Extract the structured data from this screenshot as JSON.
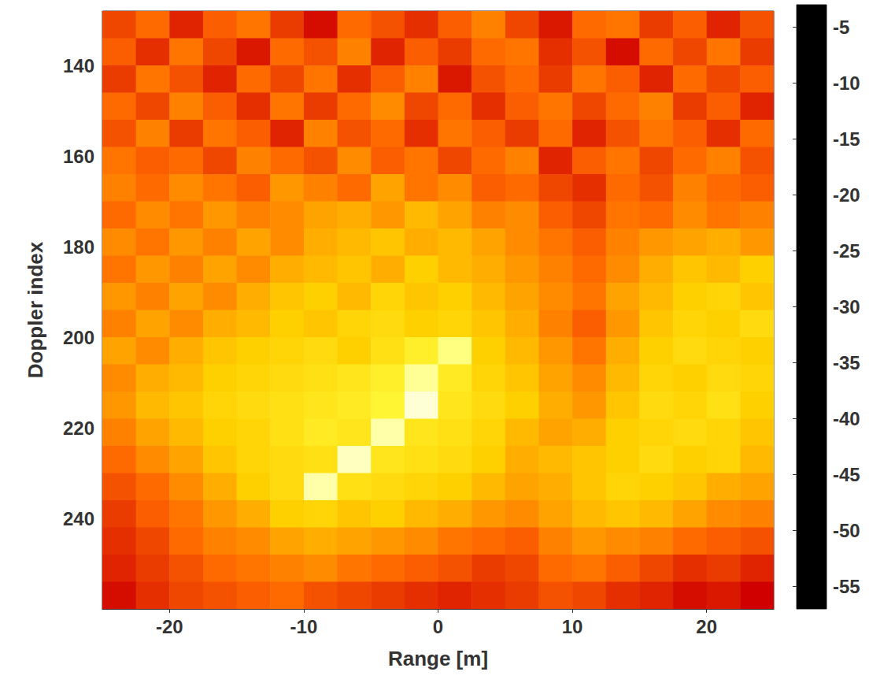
{
  "chart_data": {
    "type": "heatmap",
    "x_label": "Range [m]",
    "y_label": "Doppler index",
    "xlim": [
      -25,
      25
    ],
    "ylim": [
      128,
      260
    ],
    "xticks": [
      -20,
      -10,
      0,
      10,
      20
    ],
    "yticks": [
      140,
      160,
      180,
      200,
      220,
      240
    ],
    "x": [
      -23.75,
      -21.25,
      -18.75,
      -16.25,
      -13.75,
      -11.25,
      -8.75,
      -6.25,
      -3.75,
      -1.25,
      1.25,
      3.75,
      6.25,
      8.75,
      11.25,
      13.75,
      16.25,
      18.75,
      21.25,
      23.75
    ],
    "y": [
      131,
      137,
      143,
      149,
      155,
      161,
      167,
      173,
      179,
      185,
      191,
      197,
      203,
      209,
      215,
      221,
      227,
      233,
      239,
      245,
      251,
      257
    ],
    "values": [
      [
        -33,
        -30,
        -36,
        -31,
        -29,
        -34,
        -38,
        -30,
        -32,
        -35,
        -31,
        -28,
        -33,
        -37,
        -30,
        -29,
        -34,
        -31,
        -36,
        -32
      ],
      [
        -31,
        -35,
        -29,
        -33,
        -37,
        -30,
        -32,
        -28,
        -36,
        -31,
        -34,
        -30,
        -29,
        -35,
        -32,
        -38,
        -30,
        -33,
        -29,
        -34
      ],
      [
        -34,
        -29,
        -32,
        -36,
        -30,
        -33,
        -29,
        -35,
        -31,
        -28,
        -37,
        -32,
        -30,
        -34,
        -29,
        -31,
        -36,
        -30,
        -33,
        -31
      ],
      [
        -30,
        -33,
        -28,
        -31,
        -35,
        -29,
        -34,
        -30,
        -27,
        -33,
        -30,
        -35,
        -31,
        -29,
        -33,
        -30,
        -28,
        -34,
        -31,
        -36
      ],
      [
        -32,
        -28,
        -34,
        -29,
        -31,
        -36,
        -28,
        -32,
        -30,
        -35,
        -29,
        -31,
        -34,
        -30,
        -36,
        -32,
        -29,
        -31,
        -35,
        -30
      ],
      [
        -29,
        -31,
        -30,
        -33,
        -28,
        -30,
        -32,
        -27,
        -31,
        -29,
        -33,
        -30,
        -28,
        -36,
        -31,
        -29,
        -33,
        -30,
        -28,
        -32
      ],
      [
        -28,
        -30,
        -27,
        -29,
        -31,
        -26,
        -28,
        -30,
        -25,
        -29,
        -27,
        -31,
        -30,
        -33,
        -35,
        -30,
        -32,
        -28,
        -30,
        -31
      ],
      [
        -30,
        -27,
        -29,
        -26,
        -28,
        -27,
        -25,
        -24,
        -26,
        -23,
        -25,
        -28,
        -27,
        -31,
        -33,
        -29,
        -30,
        -27,
        -29,
        -28
      ],
      [
        -27,
        -29,
        -26,
        -28,
        -25,
        -27,
        -24,
        -23,
        -22,
        -24,
        -23,
        -25,
        -27,
        -29,
        -31,
        -28,
        -26,
        -25,
        -24,
        -26
      ],
      [
        -29,
        -26,
        -28,
        -25,
        -27,
        -24,
        -23,
        -22,
        -24,
        -21,
        -23,
        -24,
        -26,
        -28,
        -30,
        -27,
        -24,
        -22,
        -23,
        -21
      ],
      [
        -26,
        -28,
        -25,
        -27,
        -24,
        -22,
        -21,
        -23,
        -20,
        -22,
        -21,
        -23,
        -25,
        -27,
        -29,
        -25,
        -23,
        -21,
        -20,
        -22
      ],
      [
        -28,
        -25,
        -27,
        -24,
        -23,
        -21,
        -22,
        -20,
        -19,
        -21,
        -20,
        -22,
        -24,
        -28,
        -31,
        -26,
        -22,
        -20,
        -21,
        -19
      ],
      [
        -25,
        -27,
        -24,
        -22,
        -21,
        -20,
        -19,
        -21,
        -18,
        -15,
        -9,
        -21,
        -23,
        -26,
        -29,
        -24,
        -21,
        -19,
        -20,
        -21
      ],
      [
        -27,
        -24,
        -23,
        -21,
        -20,
        -19,
        -18,
        -17,
        -15,
        -8,
        -16,
        -20,
        -22,
        -25,
        -27,
        -23,
        -20,
        -21,
        -19,
        -20
      ],
      [
        -26,
        -23,
        -22,
        -20,
        -19,
        -18,
        -17,
        -16,
        -14,
        -5,
        -17,
        -19,
        -21,
        -24,
        -26,
        -22,
        -19,
        -20,
        -18,
        -21
      ],
      [
        -28,
        -25,
        -23,
        -21,
        -20,
        -18,
        -16,
        -17,
        -7,
        -17,
        -18,
        -20,
        -23,
        -25,
        -24,
        -21,
        -20,
        -19,
        -20,
        -22
      ],
      [
        -30,
        -27,
        -25,
        -22,
        -20,
        -19,
        -18,
        -6,
        -17,
        -18,
        -19,
        -21,
        -24,
        -23,
        -22,
        -21,
        -19,
        -21,
        -20,
        -23
      ],
      [
        -32,
        -30,
        -27,
        -24,
        -21,
        -19,
        -7,
        -18,
        -19,
        -20,
        -21,
        -23,
        -25,
        -24,
        -22,
        -20,
        -21,
        -22,
        -24,
        -25
      ],
      [
        -34,
        -31,
        -29,
        -26,
        -24,
        -21,
        -20,
        -22,
        -21,
        -23,
        -24,
        -26,
        -27,
        -25,
        -23,
        -22,
        -23,
        -25,
        -27,
        -28
      ],
      [
        -35,
        -33,
        -30,
        -28,
        -27,
        -25,
        -24,
        -25,
        -26,
        -27,
        -29,
        -30,
        -31,
        -28,
        -26,
        -27,
        -28,
        -30,
        -31,
        -32
      ],
      [
        -36,
        -34,
        -32,
        -30,
        -29,
        -28,
        -27,
        -29,
        -30,
        -31,
        -32,
        -34,
        -33,
        -30,
        -29,
        -31,
        -33,
        -35,
        -34,
        -36
      ],
      [
        -38,
        -35,
        -33,
        -32,
        -31,
        -30,
        -32,
        -33,
        -34,
        -35,
        -36,
        -35,
        -34,
        -32,
        -33,
        -35,
        -36,
        -38,
        -37,
        -39
      ]
    ],
    "colorbar": {
      "range": [
        -57,
        -3
      ],
      "ticks": [
        -5,
        -10,
        -15,
        -20,
        -25,
        -30,
        -35,
        -40,
        -45,
        -50,
        -55
      ]
    }
  }
}
